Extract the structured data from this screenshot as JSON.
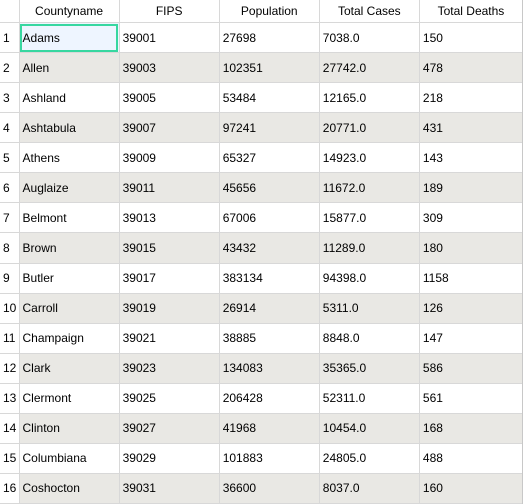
{
  "columns": [
    "Countyname",
    "FIPS",
    "Population",
    "Total Cases",
    "Total Deaths"
  ],
  "rows": [
    {
      "num": "1",
      "cells": [
        "Adams",
        "39001",
        "27698",
        "7038.0",
        "150"
      ]
    },
    {
      "num": "2",
      "cells": [
        "Allen",
        "39003",
        "102351",
        "27742.0",
        "478"
      ]
    },
    {
      "num": "3",
      "cells": [
        "Ashland",
        "39005",
        "53484",
        "12165.0",
        "218"
      ]
    },
    {
      "num": "4",
      "cells": [
        "Ashtabula",
        "39007",
        "97241",
        "20771.0",
        "431"
      ]
    },
    {
      "num": "5",
      "cells": [
        "Athens",
        "39009",
        "65327",
        "14923.0",
        "143"
      ]
    },
    {
      "num": "6",
      "cells": [
        "Auglaize",
        "39011",
        "45656",
        "11672.0",
        "189"
      ]
    },
    {
      "num": "7",
      "cells": [
        "Belmont",
        "39013",
        "67006",
        "15877.0",
        "309"
      ]
    },
    {
      "num": "8",
      "cells": [
        "Brown",
        "39015",
        "43432",
        "11289.0",
        "180"
      ]
    },
    {
      "num": "9",
      "cells": [
        "Butler",
        "39017",
        "383134",
        "94398.0",
        "1158"
      ]
    },
    {
      "num": "10",
      "cells": [
        "Carroll",
        "39019",
        "26914",
        "5311.0",
        "126"
      ]
    },
    {
      "num": "11",
      "cells": [
        "Champaign",
        "39021",
        "38885",
        "8848.0",
        "147"
      ]
    },
    {
      "num": "12",
      "cells": [
        "Clark",
        "39023",
        "134083",
        "35365.0",
        "586"
      ]
    },
    {
      "num": "13",
      "cells": [
        "Clermont",
        "39025",
        "206428",
        "52311.0",
        "561"
      ]
    },
    {
      "num": "14",
      "cells": [
        "Clinton",
        "39027",
        "41968",
        "10454.0",
        "168"
      ]
    },
    {
      "num": "15",
      "cells": [
        "Columbiana",
        "39029",
        "101883",
        "24805.0",
        "488"
      ]
    },
    {
      "num": "16",
      "cells": [
        "Coshocton",
        "39031",
        "36600",
        "8037.0",
        "160"
      ]
    }
  ],
  "selected_cell": {
    "row": 0,
    "col": 0
  },
  "colors": {
    "alt_row": "#e9e8e4",
    "selection_border": "#37d7a0",
    "grid_line": "#d8d8d8"
  }
}
